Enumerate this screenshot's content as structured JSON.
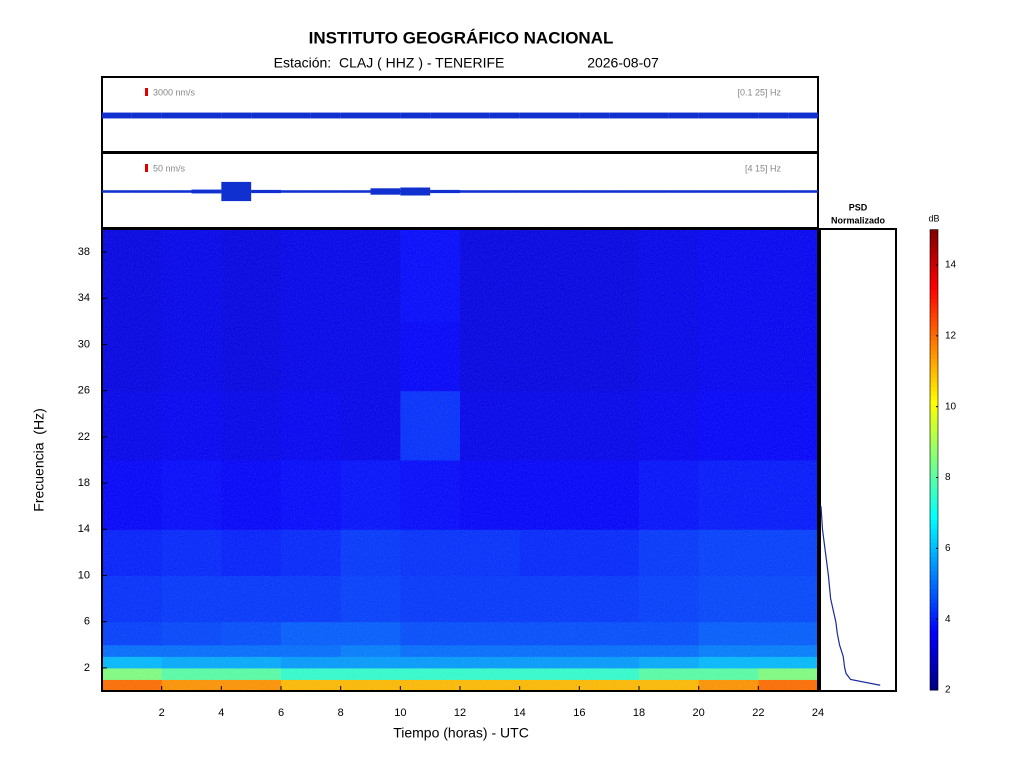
{
  "chart_data": {
    "type": "spectrogram",
    "title": "INSTITUTO GEOGRÁFICO NACIONAL",
    "station": "Estación:  CLAJ ( HHZ ) - TENERIFE",
    "date": "2026-08-07",
    "x_label": "Tiempo (horas) - UTC",
    "y_label": "Frecuencia  (Hz)",
    "xlim": [
      0,
      24
    ],
    "xticks": [
      2,
      4,
      6,
      8,
      10,
      12,
      14,
      16,
      18,
      20,
      22,
      24
    ],
    "ylim": [
      0,
      40
    ],
    "yticks": [
      2,
      6,
      10,
      14,
      18,
      22,
      26,
      30,
      34,
      38
    ],
    "traces": [
      {
        "scale_bar": {
          "value": 3000,
          "label": "3000 nm/s"
        },
        "band": "[0.1 25] Hz",
        "color": "#1030d0",
        "envelope": [
          1100,
          1100,
          1100,
          1100,
          1100,
          1100,
          1100,
          1100,
          1100,
          1100,
          1100,
          1100,
          1100,
          1100,
          1100,
          1100,
          1100,
          1100,
          1100,
          1100,
          1100,
          1100,
          1100,
          1100
        ]
      },
      {
        "scale_bar": {
          "value": 50,
          "label": "50 nm/s"
        },
        "band": "[4 15] Hz",
        "color": "#1030d0",
        "envelope": [
          8,
          8,
          8,
          12,
          60,
          10,
          8,
          8,
          8,
          20,
          25,
          10,
          8,
          8,
          8,
          8,
          8,
          8,
          8,
          8,
          8,
          8,
          8,
          8
        ]
      }
    ],
    "time_edges": [
      0,
      2,
      4,
      6,
      8,
      10,
      12,
      14,
      16,
      18,
      20,
      22,
      24
    ],
    "freq_edges": [
      0,
      1,
      2,
      3,
      4,
      6,
      10,
      14,
      20,
      26,
      32,
      40
    ],
    "db": [
      [
        12,
        11.5,
        11.5,
        11,
        11,
        11,
        11,
        11,
        11,
        11,
        11.5,
        12
      ],
      [
        8.5,
        8,
        8,
        7.5,
        7.5,
        7.5,
        7.5,
        7.5,
        7.5,
        8,
        8,
        8.5
      ],
      [
        6,
        5.8,
        5.8,
        5.6,
        5.6,
        5.6,
        5.6,
        5.6,
        5.6,
        5.8,
        6,
        6
      ],
      [
        5,
        5,
        5,
        5,
        5.2,
        5,
        5,
        5,
        5,
        5,
        5.2,
        5.2
      ],
      [
        4.4,
        4.5,
        4.6,
        4.8,
        4.8,
        4.6,
        4.6,
        4.6,
        4.6,
        4.6,
        4.8,
        4.8
      ],
      [
        4.2,
        4.3,
        4.3,
        4.3,
        4.4,
        4.3,
        4.3,
        4.3,
        4.3,
        4.4,
        4.5,
        4.5
      ],
      [
        4,
        4.1,
        4,
        4.1,
        4.3,
        4.2,
        4.2,
        4.1,
        4.1,
        4.3,
        4.4,
        4.4
      ],
      [
        3.6,
        3.7,
        3.6,
        3.7,
        3.8,
        3.7,
        3.6,
        3.6,
        3.6,
        3.8,
        3.9,
        3.9
      ],
      [
        3.4,
        3.5,
        3.4,
        3.5,
        3.4,
        4.2,
        3.4,
        3.4,
        3.4,
        3.5,
        3.6,
        3.6
      ],
      [
        3.3,
        3.4,
        3.3,
        3.4,
        3.4,
        3.6,
        3.3,
        3.3,
        3.3,
        3.4,
        3.5,
        3.5
      ],
      [
        3.3,
        3.4,
        3.3,
        3.4,
        3.4,
        3.7,
        3.3,
        3.3,
        3.3,
        3.4,
        3.5,
        3.5
      ]
    ],
    "psd": {
      "title_lines": [
        "PSD",
        "Normalizado"
      ],
      "color": "#1a2a9a",
      "xlim": [
        0,
        1
      ],
      "freq": [
        0.5,
        1,
        1.5,
        2,
        3,
        4,
        5,
        6,
        8,
        10,
        12,
        14,
        16
      ],
      "values": [
        0.8,
        0.4,
        0.34,
        0.32,
        0.3,
        0.25,
        0.22,
        0.2,
        0.13,
        0.1,
        0.06,
        0.02,
        0
      ]
    },
    "colorbar": {
      "label": "dB",
      "clim": [
        2,
        15
      ],
      "ticks": [
        2,
        4,
        6,
        8,
        10,
        12,
        14
      ]
    }
  }
}
